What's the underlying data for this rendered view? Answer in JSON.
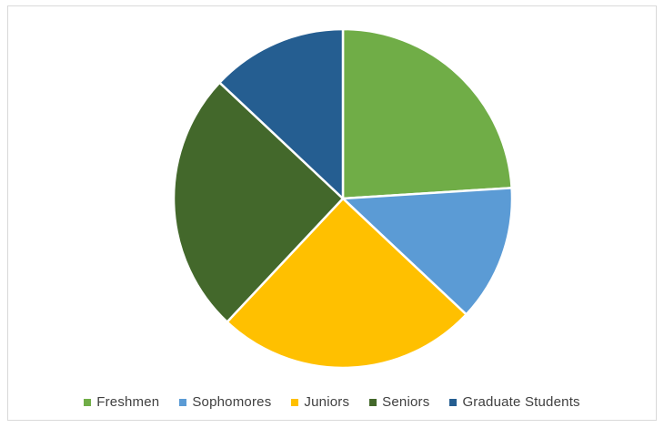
{
  "chart_data": {
    "type": "pie",
    "title": "",
    "categories": [
      "Freshmen",
      "Sophomores",
      "Juniors",
      "Seniors",
      "Graduate Students"
    ],
    "values": [
      24,
      13,
      25,
      25,
      13
    ],
    "colors": [
      "#70ad47",
      "#5b9bd5",
      "#ffc000",
      "#43682b",
      "#255e91"
    ],
    "legend_position": "bottom",
    "start_angle_deg": 0,
    "direction": "clockwise"
  }
}
